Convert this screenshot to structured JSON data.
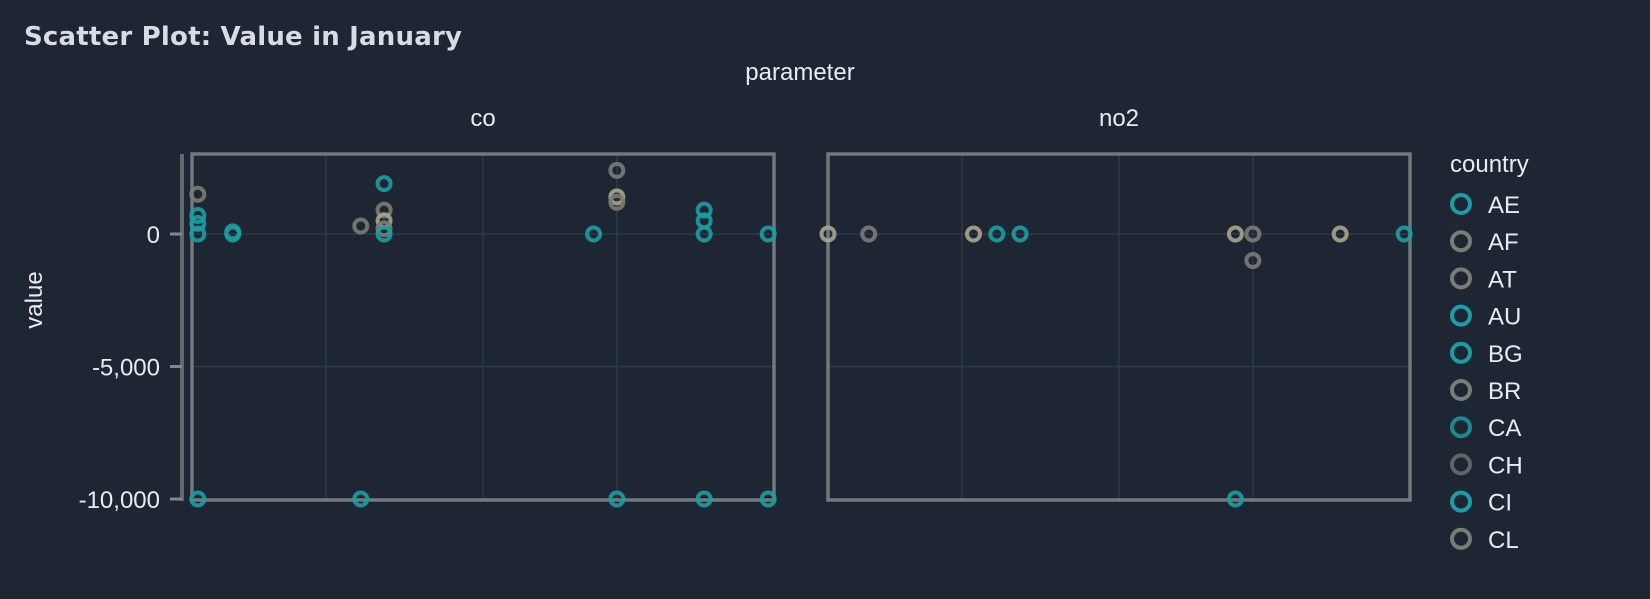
{
  "page": {
    "title": "Scatter Plot: Value in January"
  },
  "chart_data": {
    "type": "scatter",
    "title": "Scatter Plot: Value in January",
    "facet_label": "parameter",
    "facets": [
      "co",
      "no2"
    ],
    "ylabel": "value",
    "ylim": [
      -10000,
      3000
    ],
    "yticks": [
      0,
      -5000,
      -10000
    ],
    "ytick_labels": [
      "0",
      "-5,000",
      "-10,000"
    ],
    "legend_title": "country",
    "legend_position": "right",
    "grid": true,
    "colors": {
      "background": "#1e2633",
      "text": "#e8ecf0",
      "axis": "#7f8a86",
      "grid": "#2c3a46",
      "teal": "#1a9ea3",
      "gray": "#7a7d74",
      "khaki": "#a8a58c"
    },
    "legend": [
      {
        "name": "AE",
        "color": "#1a9ea3"
      },
      {
        "name": "AF",
        "color": "#7a7d74"
      },
      {
        "name": "AT",
        "color": "#7a7d74"
      },
      {
        "name": "AU",
        "color": "#1a9ea3"
      },
      {
        "name": "BG",
        "color": "#1a9ea3"
      },
      {
        "name": "BR",
        "color": "#7a7d74"
      },
      {
        "name": "CA",
        "color": "#1a8a90"
      },
      {
        "name": "CH",
        "color": "#5f6664"
      },
      {
        "name": "CI",
        "color": "#1a9ea3"
      },
      {
        "name": "CL",
        "color": "#7a7d74"
      }
    ],
    "points": {
      "co": [
        {
          "x": 0.01,
          "y": 1500,
          "color": "#7a7d74"
        },
        {
          "x": 0.01,
          "y": 700,
          "color": "#1a9ea3"
        },
        {
          "x": 0.01,
          "y": 400,
          "color": "#1a9ea3"
        },
        {
          "x": 0.01,
          "y": 0,
          "color": "#1a9ea3"
        },
        {
          "x": 0.01,
          "y": -10000,
          "color": "#1a9ea3"
        },
        {
          "x": 0.07,
          "y": 0,
          "color": "#1a9ea3"
        },
        {
          "x": 0.07,
          "y": 80,
          "color": "#1a9ea3"
        },
        {
          "x": 0.29,
          "y": 300,
          "color": "#7a7d74"
        },
        {
          "x": 0.29,
          "y": -10000,
          "color": "#1a9ea3"
        },
        {
          "x": 0.33,
          "y": 1900,
          "color": "#1a9ea3"
        },
        {
          "x": 0.33,
          "y": 900,
          "color": "#7a7d74"
        },
        {
          "x": 0.33,
          "y": 500,
          "color": "#a8a58c"
        },
        {
          "x": 0.33,
          "y": 200,
          "color": "#7a7d74"
        },
        {
          "x": 0.33,
          "y": 0,
          "color": "#1a9ea3"
        },
        {
          "x": 0.69,
          "y": 0,
          "color": "#1a9ea3"
        },
        {
          "x": 0.73,
          "y": 2400,
          "color": "#7a7d74"
        },
        {
          "x": 0.73,
          "y": 1400,
          "color": "#a8a58c"
        },
        {
          "x": 0.73,
          "y": 1200,
          "color": "#7a7d74"
        },
        {
          "x": 0.73,
          "y": -10000,
          "color": "#1a9ea3"
        },
        {
          "x": 0.88,
          "y": 900,
          "color": "#1a9ea3"
        },
        {
          "x": 0.88,
          "y": 500,
          "color": "#1a9ea3"
        },
        {
          "x": 0.88,
          "y": 0,
          "color": "#1a9ea3"
        },
        {
          "x": 0.88,
          "y": -10000,
          "color": "#1a9ea3"
        },
        {
          "x": 0.99,
          "y": 0,
          "color": "#1a9ea3"
        },
        {
          "x": 0.99,
          "y": -10000,
          "color": "#1a9ea3"
        }
      ],
      "no2": [
        {
          "x": 0.0,
          "y": 0,
          "color": "#a8a58c"
        },
        {
          "x": 0.07,
          "y": 0,
          "color": "#7a7d74"
        },
        {
          "x": 0.25,
          "y": 0,
          "color": "#a8a58c"
        },
        {
          "x": 0.29,
          "y": 0,
          "color": "#1a9ea3"
        },
        {
          "x": 0.33,
          "y": 0,
          "color": "#1a9ea3"
        },
        {
          "x": 0.7,
          "y": 0,
          "color": "#a8a58c"
        },
        {
          "x": 0.7,
          "y": -10000,
          "color": "#1a9ea3"
        },
        {
          "x": 0.73,
          "y": 0,
          "color": "#7a7d74"
        },
        {
          "x": 0.73,
          "y": -1000,
          "color": "#7a7d74"
        },
        {
          "x": 0.88,
          "y": 0,
          "color": "#a8a58c"
        },
        {
          "x": 0.99,
          "y": 0,
          "color": "#1a9ea3"
        }
      ]
    }
  }
}
